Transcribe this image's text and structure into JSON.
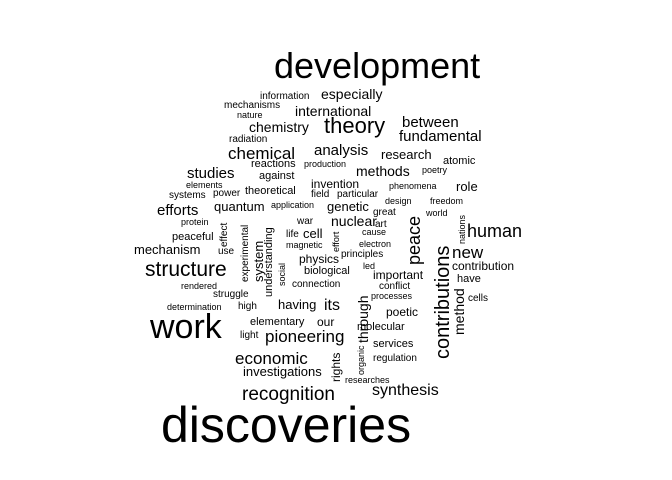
{
  "word_cloud": {
    "text_color": "#000000",
    "background_color": "#ffffff",
    "words": [
      "development",
      "discoveries",
      "work",
      "theory",
      "structure",
      "recognition",
      "contributions",
      "economic",
      "chemical",
      "human",
      "pioneering",
      "peace",
      "synthesis",
      "especially",
      "international",
      "analysis",
      "fundamental",
      "between",
      "chemistry",
      "methods",
      "research",
      "studies",
      "efforts",
      "new",
      "quantum",
      "genetic",
      "its",
      "through",
      "method",
      "invention",
      "nuclear",
      "role",
      "investigations",
      "mechanism",
      "system",
      "having",
      "cell",
      "contribution",
      "physics",
      "our",
      "elementary",
      "important",
      "rights",
      "understanding",
      "poetic",
      "molecular",
      "services",
      "information",
      "mechanisms",
      "nature",
      "radiation",
      "reactions",
      "production",
      "atomic",
      "poetry",
      "against",
      "theoretical",
      "elements",
      "power",
      "systems",
      "application",
      "phenomena",
      "field",
      "particular",
      "design",
      "freedom",
      "great",
      "world",
      "nations",
      "protein",
      "art",
      "war",
      "cause",
      "peaceful",
      "effect",
      "life",
      "magnetic",
      "effort",
      "electron",
      "use",
      "experimental",
      "principles",
      "led",
      "social",
      "biological",
      "rendered",
      "have",
      "conflict",
      "connection",
      "struggle",
      "processes",
      "cells",
      "determination",
      "high",
      "light",
      "organic",
      "regulation",
      "researches"
    ]
  }
}
